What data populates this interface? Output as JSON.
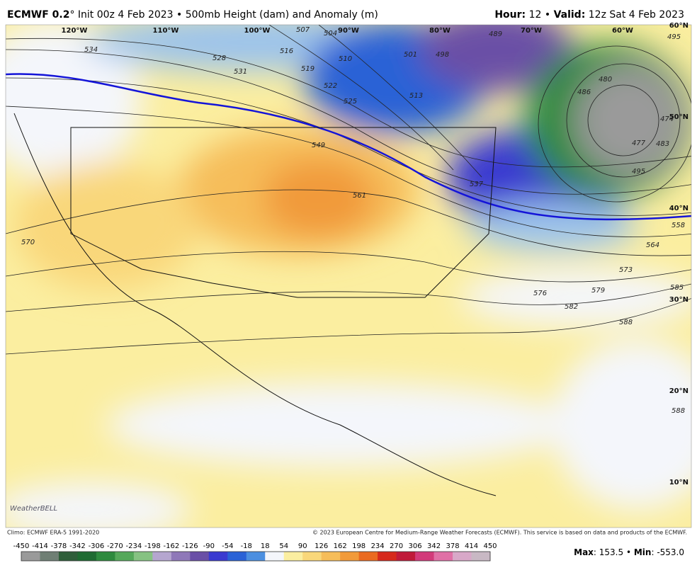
{
  "header": {
    "model": "ECMWF 0.2",
    "description": "° Init 00z 4 Feb 2023 • 500mb Height (dam) and Anomaly (m)",
    "hour_label": "Hour:",
    "hour_value": "12 •",
    "valid_label": "Valid:",
    "valid_value": "12z Sat 4 Feb 2023"
  },
  "map": {
    "lon_labels": [
      "120°W",
      "110°W",
      "100°W",
      "90°W",
      "80°W",
      "70°W",
      "60°W"
    ],
    "lat_labels": [
      "60°N",
      "50°N",
      "40°N",
      "30°N",
      "20°N",
      "10°N"
    ],
    "contour_labels": [
      "534",
      "528",
      "531",
      "516",
      "519",
      "522",
      "525",
      "507",
      "504",
      "510",
      "501",
      "498",
      "489",
      "513",
      "549",
      "561",
      "570",
      "537",
      "558",
      "564",
      "573",
      "576",
      "579",
      "582",
      "585",
      "588",
      "588",
      "495",
      "495",
      "480",
      "477",
      "474",
      "486",
      "483"
    ]
  },
  "footer": {
    "climo": "Climo: ECMWF ERA-5 1991-2020",
    "copyright": "© 2023 European Centre for Medium-Range Weather Forecasts (ECMWF). This service is based on data and products of the ECMWF.",
    "logo": "WeatherBELL",
    "colorbar": {
      "ticks": [
        -450,
        -414,
        -378,
        -342,
        -306,
        -270,
        -234,
        -198,
        -162,
        -126,
        -90,
        -54,
        -18,
        18,
        54,
        90,
        126,
        162,
        198,
        234,
        270,
        306,
        342,
        378,
        414,
        450
      ],
      "colors": [
        "#9a9a9a",
        "#6f7f74",
        "#2f5e3a",
        "#1f6b32",
        "#2e8a3e",
        "#55a85a",
        "#86c282",
        "#b5a6cf",
        "#8f78b8",
        "#6a4fa6",
        "#3a3ad0",
        "#2a62d6",
        "#4c8fe0",
        "#f4f6fb",
        "#fbeea0",
        "#f9d77a",
        "#f6bd5a",
        "#f19a3a",
        "#ea6a20",
        "#d6291c",
        "#c01a3a",
        "#d23a7a",
        "#e070a6",
        "#d8a8c8",
        "#c8b8c4"
      ]
    },
    "max_label": "Max",
    "max_value": "153.5",
    "min_label": "Min",
    "min_value": "-553.0"
  }
}
